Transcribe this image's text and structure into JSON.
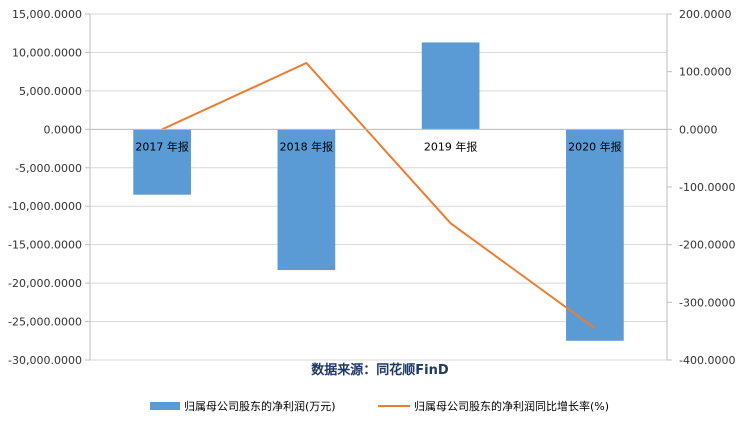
{
  "chart_data": {
    "type": "bar",
    "categories": [
      "2017 年报",
      "2018 年报",
      "2019 年报",
      "2020 年报"
    ],
    "series": [
      {
        "name": "归属母公司股东的净利润(万元)",
        "kind": "bar",
        "axis": "left",
        "color": "#5b9bd5",
        "values": [
          -8500,
          -18300,
          11300,
          -27500
        ]
      },
      {
        "name": "归属母公司股东的净利润同比增长率(%)",
        "kind": "line",
        "axis": "right",
        "color": "#ed7d31",
        "values": [
          0,
          115,
          -163,
          -345
        ]
      }
    ],
    "y_left": {
      "min": -30000,
      "max": 15000,
      "step": 5000,
      "tick_labels": [
        "15,000.0000",
        "10,000.0000",
        "5,000.0000",
        "0.0000",
        "-5,000.0000",
        "-10,000.0000",
        "-15,000.0000",
        "-20,000.0000",
        "-25,000.0000",
        "-30,000.0000"
      ]
    },
    "y_right": {
      "min": -400,
      "max": 200,
      "step": 100,
      "tick_labels": [
        "200.0000",
        "100.0000",
        "0.0000",
        "-100.0000",
        "-200.0000",
        "-300.0000",
        "-400.0000"
      ]
    },
    "grid": true,
    "legend_position": "bottom",
    "source_text": "数据来源：同花顺FinD"
  }
}
